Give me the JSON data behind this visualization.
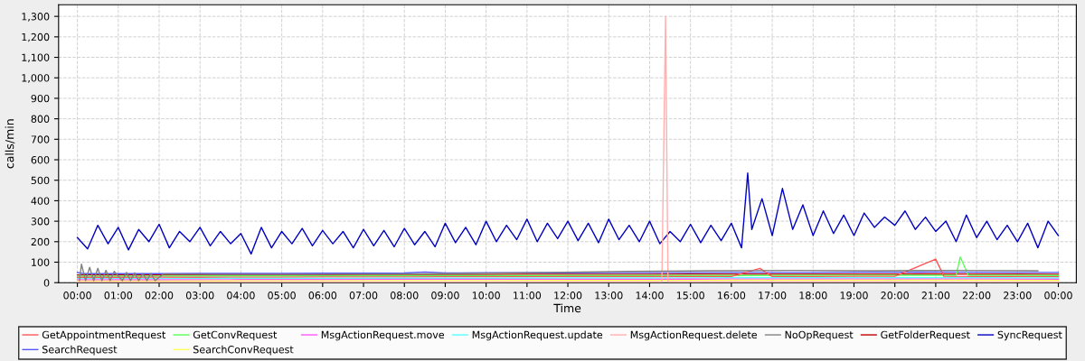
{
  "chart_data": {
    "type": "line",
    "xlabel": "Time",
    "ylabel": "calls/min",
    "xlim": [
      -0.46,
      24.44
    ],
    "ylim": [
      0,
      1357
    ],
    "xticks": [
      {
        "value": 0,
        "label": "00:00"
      },
      {
        "value": 1,
        "label": "01:00"
      },
      {
        "value": 2,
        "label": "02:00"
      },
      {
        "value": 3,
        "label": "03:00"
      },
      {
        "value": 4,
        "label": "04:00"
      },
      {
        "value": 5,
        "label": "05:00"
      },
      {
        "value": 6,
        "label": "06:00"
      },
      {
        "value": 7,
        "label": "07:00"
      },
      {
        "value": 8,
        "label": "08:00"
      },
      {
        "value": 9,
        "label": "09:00"
      },
      {
        "value": 10,
        "label": "10:00"
      },
      {
        "value": 11,
        "label": "11:00"
      },
      {
        "value": 12,
        "label": "12:00"
      },
      {
        "value": 13,
        "label": "13:00"
      },
      {
        "value": 14,
        "label": "14:00"
      },
      {
        "value": 15,
        "label": "15:00"
      },
      {
        "value": 16,
        "label": "16:00"
      },
      {
        "value": 17,
        "label": "17:00"
      },
      {
        "value": 18,
        "label": "18:00"
      },
      {
        "value": 19,
        "label": "19:00"
      },
      {
        "value": 20,
        "label": "20:00"
      },
      {
        "value": 21,
        "label": "21:00"
      },
      {
        "value": 22,
        "label": "22:00"
      },
      {
        "value": 23,
        "label": "23:00"
      },
      {
        "value": 24,
        "label": "00:00"
      }
    ],
    "yticks": [
      0,
      100,
      200,
      300,
      400,
      500,
      600,
      700,
      800,
      900,
      {
        "value": 1000,
        "label": "1,000"
      },
      {
        "value": 1100,
        "label": "1,100"
      },
      {
        "value": 1200,
        "label": "1,200"
      },
      {
        "value": 1300,
        "label": "1,300"
      }
    ],
    "grid": true,
    "legend": "bottom",
    "marker": "none",
    "line_style": "solid",
    "series": [
      {
        "name": "GetAppointmentRequest",
        "color": "#ff5555",
        "x": [
          0,
          1,
          2,
          3,
          4,
          5,
          6,
          7,
          8,
          9,
          10,
          11,
          12,
          13,
          14,
          15,
          16,
          16.7,
          17,
          18,
          19,
          20,
          21,
          21.2,
          22,
          23,
          24
        ],
        "values": [
          26,
          26,
          27,
          26,
          27,
          27,
          28,
          28,
          28,
          29,
          29,
          29,
          30,
          30,
          30,
          30,
          30,
          70,
          30,
          30,
          31,
          31,
          115,
          31,
          30,
          30,
          29
        ]
      },
      {
        "name": "SearchRequest",
        "color": "#5555ff",
        "x": [
          0,
          0.15,
          1,
          2,
          3,
          4,
          5,
          6,
          7,
          8,
          8.5,
          9,
          10,
          11,
          12,
          13,
          14,
          15,
          16,
          17,
          18,
          19,
          20,
          21,
          22,
          23,
          24
        ],
        "values": [
          50,
          44,
          44,
          44,
          45,
          45,
          45,
          46,
          46,
          47,
          52,
          47,
          48,
          48,
          48,
          49,
          49,
          49,
          50,
          50,
          50,
          51,
          51,
          52,
          51,
          50,
          50
        ]
      },
      {
        "name": "GetConvRequest",
        "color": "#55ff55",
        "x": [
          0,
          2,
          4,
          6,
          8,
          10,
          12,
          14,
          16,
          18,
          20,
          21.5,
          21.6,
          21.8,
          23,
          24
        ],
        "values": [
          32,
          32,
          33,
          33,
          34,
          34,
          35,
          35,
          35,
          36,
          36,
          36,
          125,
          36,
          36,
          35
        ]
      },
      {
        "name": "SearchConvRequest",
        "color": "#ffff55",
        "x": [
          0,
          2,
          4,
          6,
          8,
          10,
          12,
          14,
          16,
          18,
          20,
          22,
          24
        ],
        "values": [
          8,
          8,
          9,
          9,
          10,
          10,
          11,
          11,
          12,
          12,
          12,
          12,
          11
        ]
      },
      {
        "name": "MsgActionRequest.move",
        "color": "#ff55ff",
        "x": [
          0,
          2,
          4,
          6,
          8,
          10,
          12,
          14,
          16,
          18,
          20,
          22,
          24
        ],
        "values": [
          14,
          14,
          15,
          15,
          16,
          16,
          17,
          17,
          18,
          18,
          18,
          18,
          17
        ]
      },
      {
        "name": "MsgActionRequest.update",
        "color": "#55ffff",
        "x": [
          0,
          2,
          4,
          6,
          8,
          10,
          12,
          14,
          16,
          18,
          20,
          22,
          24
        ],
        "values": [
          20,
          20,
          21,
          21,
          22,
          22,
          23,
          23,
          24,
          24,
          24,
          24,
          23
        ]
      },
      {
        "name": "MsgActionRequest.delete",
        "color": "#ffafaf",
        "x": [
          0,
          4,
          8,
          12,
          14.3,
          14.39,
          14.45,
          16,
          20,
          24
        ],
        "values": [
          3,
          3,
          3,
          4,
          4,
          1300,
          4,
          4,
          4,
          3
        ]
      },
      {
        "name": "NoOpRequest",
        "color": "#808080",
        "x": [
          0.05,
          0.1,
          0.2,
          0.3,
          0.4,
          0.5,
          0.6,
          0.7,
          0.8,
          0.9,
          1.1,
          1.2,
          1.3,
          1.4,
          1.5,
          1.6,
          1.7,
          1.8,
          1.9,
          2.1,
          3.5,
          5.5,
          7.5,
          9.5,
          11.5,
          13.5,
          15.5,
          17.5,
          19.5,
          21.5,
          23.5
        ],
        "values": [
          10,
          90,
          10,
          75,
          10,
          70,
          10,
          60,
          10,
          55,
          10,
          50,
          10,
          48,
          10,
          45,
          10,
          45,
          10,
          42,
          40,
          40,
          42,
          45,
          50,
          55,
          58,
          60,
          58,
          60,
          58
        ]
      },
      {
        "name": "GetFolderRequest",
        "color": "#c00000",
        "x": [
          0,
          1,
          2,
          3,
          4,
          5,
          6,
          7,
          8,
          9,
          10,
          11,
          12,
          13,
          14,
          15,
          16,
          17,
          18,
          19,
          20,
          21,
          22,
          23,
          24
        ],
        "values": [
          38,
          38,
          38,
          39,
          39,
          39,
          39,
          40,
          40,
          40,
          40,
          41,
          41,
          41,
          41,
          42,
          42,
          42,
          42,
          42,
          42,
          43,
          42,
          42,
          41
        ]
      },
      {
        "name": "SyncRequest",
        "color": "#0000c0",
        "x": [
          0,
          0.25,
          0.5,
          0.75,
          1,
          1.25,
          1.5,
          1.75,
          2,
          2.25,
          2.5,
          2.75,
          3,
          3.25,
          3.5,
          3.75,
          4,
          4.25,
          4.5,
          4.75,
          5,
          5.25,
          5.5,
          5.75,
          6,
          6.25,
          6.5,
          6.75,
          7,
          7.25,
          7.5,
          7.75,
          8,
          8.25,
          8.5,
          8.75,
          9,
          9.25,
          9.5,
          9.75,
          10,
          10.25,
          10.5,
          10.75,
          11,
          11.25,
          11.5,
          11.75,
          12,
          12.25,
          12.5,
          12.75,
          13,
          13.25,
          13.5,
          13.75,
          14,
          14.25,
          14.5,
          14.75,
          15,
          15.25,
          15.5,
          15.75,
          16,
          16.25,
          16.4,
          16.5,
          16.75,
          17,
          17.25,
          17.5,
          17.75,
          18,
          18.25,
          18.5,
          18.75,
          19,
          19.25,
          19.5,
          19.75,
          20,
          20.25,
          20.5,
          20.75,
          21,
          21.25,
          21.5,
          21.75,
          22,
          22.25,
          22.5,
          22.75,
          23,
          23.25,
          23.5,
          23.75,
          24
        ],
        "values": [
          220,
          165,
          280,
          190,
          270,
          160,
          260,
          200,
          285,
          170,
          250,
          200,
          270,
          180,
          250,
          190,
          240,
          140,
          270,
          170,
          250,
          190,
          265,
          180,
          255,
          190,
          250,
          170,
          260,
          180,
          255,
          175,
          265,
          185,
          250,
          175,
          290,
          195,
          270,
          185,
          300,
          200,
          280,
          210,
          310,
          200,
          290,
          215,
          300,
          205,
          290,
          195,
          310,
          210,
          280,
          200,
          300,
          190,
          250,
          200,
          285,
          195,
          280,
          205,
          290,
          170,
          535,
          260,
          410,
          230,
          460,
          260,
          380,
          230,
          350,
          240,
          330,
          230,
          340,
          270,
          320,
          280,
          350,
          260,
          320,
          250,
          300,
          200,
          330,
          220,
          300,
          210,
          280,
          200,
          290,
          170,
          300,
          230
        ]
      }
    ]
  }
}
